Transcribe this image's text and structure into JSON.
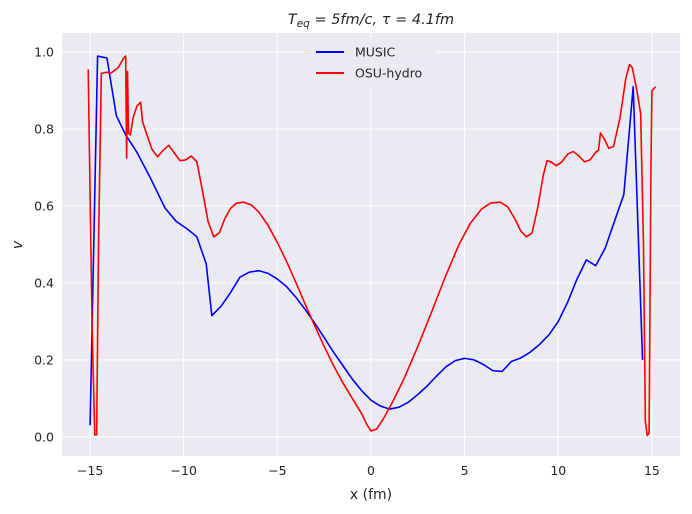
{
  "chart_data": {
    "type": "line",
    "title": "T_eq = 5fm/c, τ = 4.1fm",
    "xlabel": "x (fm)",
    "ylabel": "v",
    "xlim": [
      -16.5,
      16.5
    ],
    "ylim": [
      -0.05,
      1.05
    ],
    "xticks": [
      -15,
      -10,
      -5,
      0,
      5,
      10,
      15
    ],
    "xtick_labels": [
      "−15",
      "−10",
      "−5",
      "0",
      "5",
      "10",
      "15"
    ],
    "yticks": [
      0.0,
      0.2,
      0.4,
      0.6,
      0.8,
      1.0
    ],
    "ytick_labels": [
      "0.0",
      "0.2",
      "0.4",
      "0.6",
      "0.8",
      "1.0"
    ],
    "grid": true,
    "legend_position": "top-center",
    "series": [
      {
        "name": "MUSIC",
        "color": "#0000ff",
        "points": [
          [
            -15.0,
            0.03
          ],
          [
            -14.6,
            0.99
          ],
          [
            -14.1,
            0.985
          ],
          [
            -13.6,
            0.835
          ],
          [
            -13.1,
            0.785
          ],
          [
            -12.5,
            0.74
          ],
          [
            -11.8,
            0.675
          ],
          [
            -11.0,
            0.595
          ],
          [
            -10.4,
            0.56
          ],
          [
            -9.8,
            0.54
          ],
          [
            -9.3,
            0.52
          ],
          [
            -8.8,
            0.45
          ],
          [
            -8.5,
            0.315
          ],
          [
            -8.0,
            0.34
          ],
          [
            -7.5,
            0.375
          ],
          [
            -7.0,
            0.415
          ],
          [
            -6.5,
            0.428
          ],
          [
            -6.0,
            0.432
          ],
          [
            -5.5,
            0.425
          ],
          [
            -5.0,
            0.41
          ],
          [
            -4.5,
            0.39
          ],
          [
            -4.0,
            0.362
          ],
          [
            -3.5,
            0.33
          ],
          [
            -3.0,
            0.295
          ],
          [
            -2.5,
            0.258
          ],
          [
            -2.0,
            0.22
          ],
          [
            -1.5,
            0.185
          ],
          [
            -1.0,
            0.15
          ],
          [
            -0.5,
            0.12
          ],
          [
            0.0,
            0.095
          ],
          [
            0.5,
            0.08
          ],
          [
            1.0,
            0.072
          ],
          [
            1.5,
            0.077
          ],
          [
            2.0,
            0.09
          ],
          [
            2.5,
            0.11
          ],
          [
            3.0,
            0.132
          ],
          [
            3.5,
            0.158
          ],
          [
            4.0,
            0.182
          ],
          [
            4.5,
            0.198
          ],
          [
            5.0,
            0.204
          ],
          [
            5.5,
            0.2
          ],
          [
            6.0,
            0.188
          ],
          [
            6.5,
            0.172
          ],
          [
            7.0,
            0.17
          ],
          [
            7.5,
            0.196
          ],
          [
            8.0,
            0.205
          ],
          [
            8.5,
            0.22
          ],
          [
            9.0,
            0.24
          ],
          [
            9.5,
            0.265
          ],
          [
            10.0,
            0.3
          ],
          [
            10.5,
            0.35
          ],
          [
            11.0,
            0.41
          ],
          [
            11.5,
            0.46
          ],
          [
            12.0,
            0.445
          ],
          [
            12.5,
            0.49
          ],
          [
            13.0,
            0.56
          ],
          [
            13.5,
            0.63
          ],
          [
            14.0,
            0.91
          ],
          [
            14.5,
            0.2
          ]
        ]
      },
      {
        "name": "OSU-hydro",
        "color": "#ff0000",
        "points": [
          [
            -15.1,
            0.955
          ],
          [
            -14.9,
            0.3
          ],
          [
            -14.75,
            0.005
          ],
          [
            -14.65,
            0.005
          ],
          [
            -14.55,
            0.5
          ],
          [
            -14.4,
            0.945
          ],
          [
            -14.1,
            0.948
          ],
          [
            -13.9,
            0.945
          ],
          [
            -13.5,
            0.96
          ],
          [
            -13.2,
            0.985
          ],
          [
            -13.1,
            0.99
          ],
          [
            -13.05,
            0.725
          ],
          [
            -13.0,
            0.95
          ],
          [
            -12.95,
            0.79
          ],
          [
            -12.85,
            0.785
          ],
          [
            -12.7,
            0.83
          ],
          [
            -12.5,
            0.86
          ],
          [
            -12.3,
            0.87
          ],
          [
            -12.2,
            0.82
          ],
          [
            -12.0,
            0.79
          ],
          [
            -11.7,
            0.748
          ],
          [
            -11.4,
            0.728
          ],
          [
            -11.1,
            0.745
          ],
          [
            -10.8,
            0.758
          ],
          [
            -10.5,
            0.738
          ],
          [
            -10.2,
            0.718
          ],
          [
            -9.9,
            0.72
          ],
          [
            -9.6,
            0.73
          ],
          [
            -9.3,
            0.715
          ],
          [
            -9.0,
            0.64
          ],
          [
            -8.7,
            0.56
          ],
          [
            -8.4,
            0.52
          ],
          [
            -8.1,
            0.53
          ],
          [
            -7.8,
            0.568
          ],
          [
            -7.5,
            0.594
          ],
          [
            -7.2,
            0.607
          ],
          [
            -6.8,
            0.61
          ],
          [
            -6.4,
            0.603
          ],
          [
            -6.0,
            0.585
          ],
          [
            -5.5,
            0.55
          ],
          [
            -5.0,
            0.505
          ],
          [
            -4.5,
            0.455
          ],
          [
            -4.0,
            0.4
          ],
          [
            -3.5,
            0.343
          ],
          [
            -3.0,
            0.288
          ],
          [
            -2.5,
            0.235
          ],
          [
            -2.0,
            0.185
          ],
          [
            -1.5,
            0.14
          ],
          [
            -1.0,
            0.1
          ],
          [
            -0.5,
            0.06
          ],
          [
            -0.2,
            0.03
          ],
          [
            0.0,
            0.015
          ],
          [
            0.3,
            0.02
          ],
          [
            0.7,
            0.05
          ],
          [
            1.2,
            0.095
          ],
          [
            1.8,
            0.155
          ],
          [
            2.5,
            0.235
          ],
          [
            3.2,
            0.32
          ],
          [
            4.0,
            0.42
          ],
          [
            4.7,
            0.5
          ],
          [
            5.3,
            0.555
          ],
          [
            5.9,
            0.592
          ],
          [
            6.4,
            0.608
          ],
          [
            6.9,
            0.61
          ],
          [
            7.3,
            0.598
          ],
          [
            7.7,
            0.565
          ],
          [
            8.0,
            0.535
          ],
          [
            8.3,
            0.52
          ],
          [
            8.6,
            0.53
          ],
          [
            8.9,
            0.595
          ],
          [
            9.2,
            0.68
          ],
          [
            9.4,
            0.718
          ],
          [
            9.6,
            0.715
          ],
          [
            9.9,
            0.705
          ],
          [
            10.2,
            0.715
          ],
          [
            10.5,
            0.735
          ],
          [
            10.8,
            0.742
          ],
          [
            11.1,
            0.73
          ],
          [
            11.4,
            0.715
          ],
          [
            11.7,
            0.72
          ],
          [
            12.0,
            0.74
          ],
          [
            12.15,
            0.745
          ],
          [
            12.25,
            0.79
          ],
          [
            12.45,
            0.775
          ],
          [
            12.7,
            0.75
          ],
          [
            12.95,
            0.755
          ],
          [
            13.3,
            0.83
          ],
          [
            13.6,
            0.93
          ],
          [
            13.8,
            0.968
          ],
          [
            13.95,
            0.96
          ],
          [
            14.2,
            0.9
          ],
          [
            14.4,
            0.84
          ],
          [
            14.55,
            0.5
          ],
          [
            14.65,
            0.04
          ],
          [
            14.75,
            0.003
          ],
          [
            14.85,
            0.01
          ],
          [
            14.95,
            0.7
          ],
          [
            15.0,
            0.9
          ],
          [
            15.2,
            0.91
          ]
        ]
      }
    ]
  }
}
